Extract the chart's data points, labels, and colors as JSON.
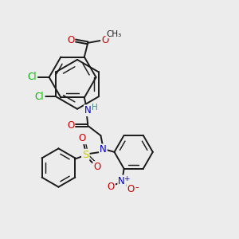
{
  "bg_color": "#ececec",
  "bond_color": "#1a1a1a",
  "N_color": "#0000cc",
  "O_color": "#cc0000",
  "S_color": "#cccc00",
  "Cl_color": "#00bb00",
  "H_color": "#448888",
  "figsize": [
    3.0,
    3.0
  ],
  "dpi": 100,
  "xlim": [
    0,
    10
  ],
  "ylim": [
    0,
    10
  ]
}
